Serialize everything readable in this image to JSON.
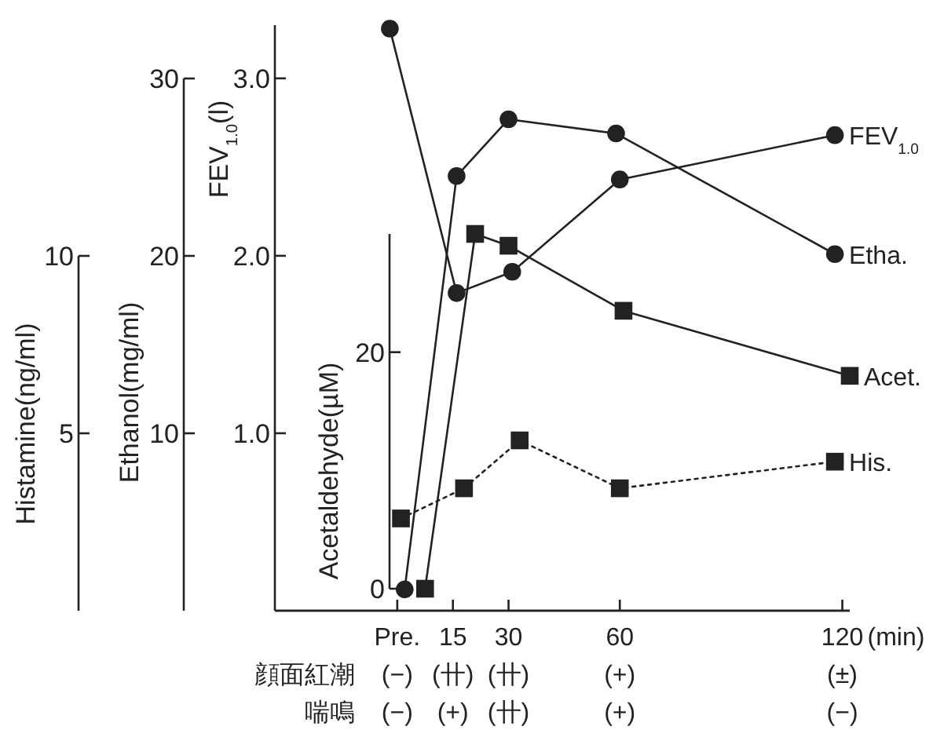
{
  "chart_data": [
    {
      "type": "line",
      "ylabel": "FEV$_{1.0}$(l)",
      "y2label": "Ethanol(mg/ml)",
      "y3label": "Histamine(ng/ml)",
      "xlabel": "(min)",
      "xlim": [
        -33,
        122
      ],
      "xticks": [
        {
          "value": 0,
          "label": "Pre."
        },
        15,
        30,
        60,
        120
      ],
      "ylim": [
        0,
        3.3
      ],
      "yticks": [
        {
          "value": 1,
          "label": "1.0"
        },
        {
          "value": 2,
          "label": "2.0"
        },
        {
          "value": 3,
          "label": "3.0"
        }
      ],
      "y2lim": [
        0,
        30
      ],
      "y2ticks": [
        10,
        20,
        30
      ],
      "y3lim": [
        0,
        10
      ],
      "y3ticks": [
        5,
        10
      ],
      "grid": false,
      "legend": false,
      "series": [
        {
          "name": "FEV$_{1.0}$",
          "color": "#222222",
          "marker": "circle",
          "line_style": "solid",
          "x": [
            -2,
            16,
            31,
            60,
            118
          ],
          "values": [
            3.28,
            1.79,
            1.91,
            2.43,
            2.68
          ]
        },
        {
          "name": "Etha.",
          "color": "#222222",
          "axis": "y2",
          "marker": "circle",
          "line_style": "solid",
          "x": [
            2,
            16,
            30,
            59,
            118
          ],
          "values": [
            1.2,
            24.5,
            27.7,
            26.9,
            20.1
          ]
        },
        {
          "name": "His.",
          "color": "#222222",
          "axis": "y3",
          "marker": "square",
          "line_style": "dotted",
          "x": [
            1,
            18,
            33,
            60,
            118
          ],
          "values": [
            2.6,
            3.45,
            4.8,
            3.45,
            4.2
          ]
        }
      ],
      "annotations": [
        "顔面紅潮",
        "(−)",
        "(卄)",
        "(卄)",
        "(+)",
        "(±)",
        "喘鳴",
        "(−)",
        "(+)",
        "(卄)",
        "(+)",
        "(−)"
      ]
    },
    {
      "type": "line",
      "ylabel": "Acetaldehyde(µM)",
      "xlim": [
        -33,
        122
      ],
      "ylim": [
        0,
        30
      ],
      "yticks": [
        0,
        20
      ],
      "tick_labels": "y",
      "series": [
        {
          "name": "Acet.",
          "color": "#222222",
          "marker": "square",
          "line_style": "solid",
          "x": [
            7.5,
            21,
            30,
            61,
            122
          ],
          "values": [
            0,
            30,
            29,
            23.5,
            18
          ]
        }
      ]
    }
  ]
}
